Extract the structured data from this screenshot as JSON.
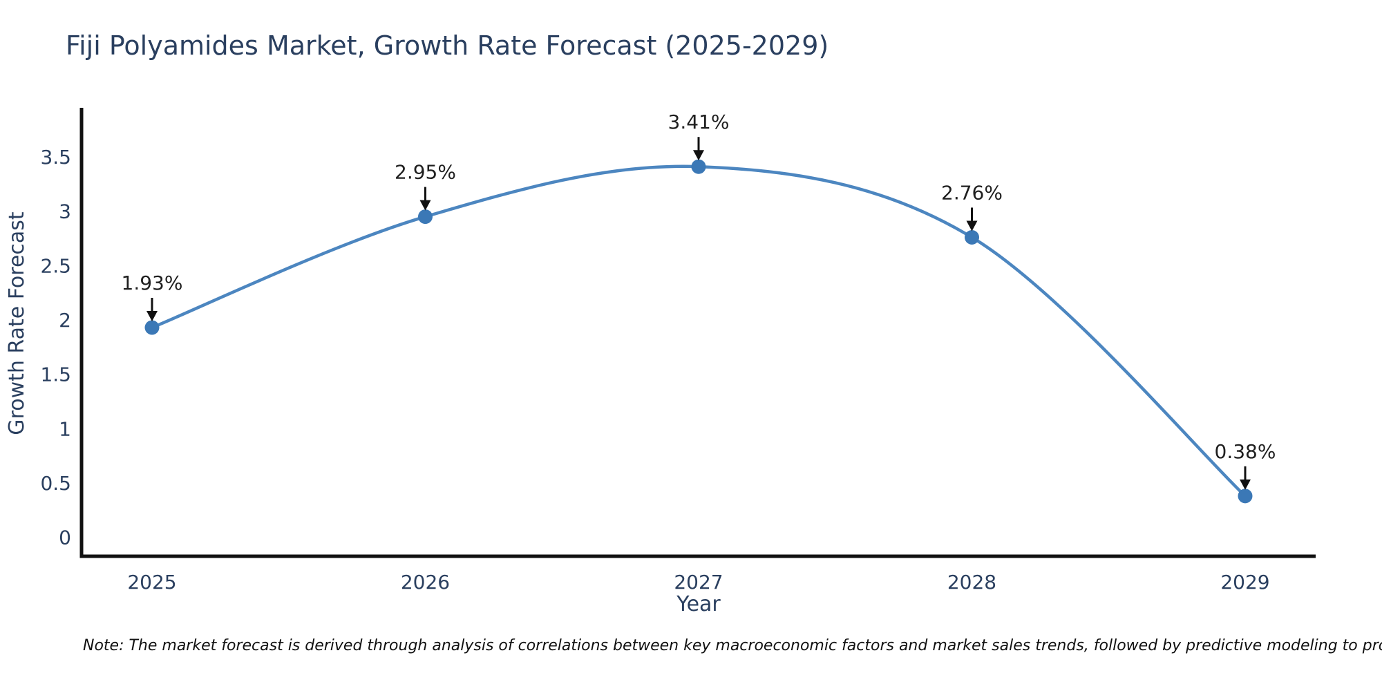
{
  "title": "Fiji Polyamides Market, Growth Rate Forecast (2025-2029)",
  "note": "Note: The market forecast is derived through analysis of correlations between key macroeconomic factors and market sales trends, followed by predictive modeling to project future sales",
  "chart_data": {
    "type": "line",
    "title": "Fiji Polyamides Market, Growth Rate Forecast (2025-2029)",
    "xlabel": "Year",
    "ylabel": "Growth Rate Forecast",
    "x": [
      2025,
      2026,
      2027,
      2028,
      2029
    ],
    "xticklabels": [
      "2025",
      "2026",
      "2027",
      "2028",
      "2029"
    ],
    "values": [
      1.93,
      2.95,
      3.41,
      2.76,
      0.38
    ],
    "annotations": [
      "1.93%",
      "2.95%",
      "3.41%",
      "2.76%",
      "0.38%"
    ],
    "yticks": [
      0,
      0.5,
      1,
      1.5,
      2,
      2.5,
      3,
      3.5
    ],
    "ylim": [
      0,
      3.95
    ],
    "grid": false,
    "legend": "none",
    "line_shape": "spline",
    "colors": {
      "line": "#4c86c0",
      "marker": "#3b78b6",
      "axis": "#111111",
      "tick_text": "#2a3f5f",
      "annotation_text": "#1f1f1f",
      "arrow": "#111111"
    }
  }
}
